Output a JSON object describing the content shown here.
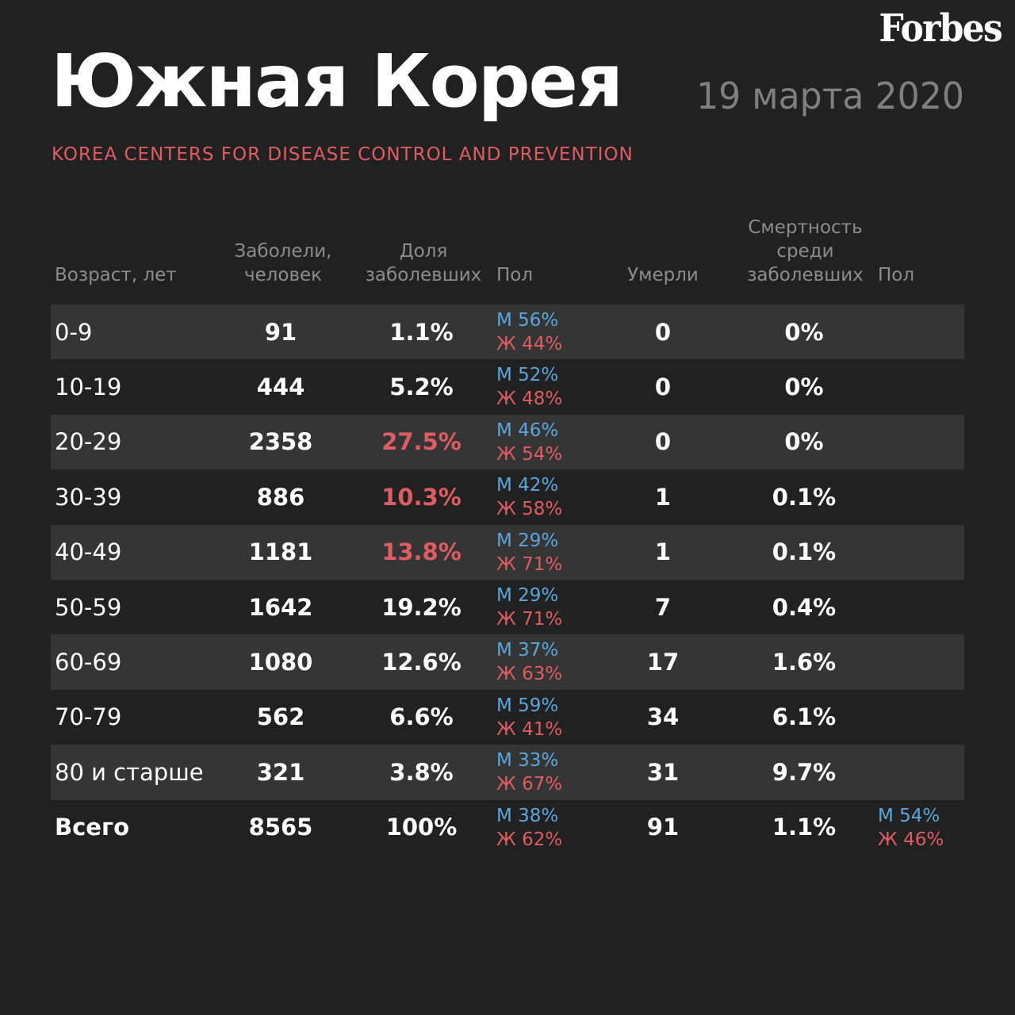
{
  "logo": "Forbes",
  "title": "Южная Корея",
  "date": "19 марта 2020",
  "source": "KOREA CENTERS FOR DISEASE CONTROL AND PREVENTION",
  "colors": {
    "background": "#212121",
    "row_shade": "#353535",
    "accent_red": "#e05c63",
    "accent_blue": "#5aa6dc",
    "muted": "#8c8c8c"
  },
  "headers": {
    "age": "Возраст, лет",
    "cases": "Заболели,\nчеловек",
    "share": "Доля\nзаболевших",
    "sex1": "Пол",
    "deaths": "Умерли",
    "mortality": "Смертность\nсреди\nзаболевших",
    "sex2": "Пол"
  },
  "chart_data": {
    "type": "table",
    "columns": [
      "Возраст, лет",
      "Заболели, человек",
      "Доля заболевших",
      "Пол",
      "Умерли",
      "Смертность среди заболевших",
      "Пол"
    ],
    "rows": [
      {
        "age": "0-9",
        "cases": "91",
        "share": "1.1%",
        "share_highlight": false,
        "m": "М 56%",
        "f": "Ж 44%",
        "deaths": "0",
        "mortality": "0%"
      },
      {
        "age": "10-19",
        "cases": "444",
        "share": "5.2%",
        "share_highlight": false,
        "m": "М 52%",
        "f": "Ж 48%",
        "deaths": "0",
        "mortality": "0%"
      },
      {
        "age": "20-29",
        "cases": "2358",
        "share": "27.5%",
        "share_highlight": true,
        "m": "М 46%",
        "f": "Ж 54%",
        "deaths": "0",
        "mortality": "0%"
      },
      {
        "age": "30-39",
        "cases": "886",
        "share": "10.3%",
        "share_highlight": true,
        "m": "М 42%",
        "f": "Ж 58%",
        "deaths": "1",
        "mortality": "0.1%"
      },
      {
        "age": "40-49",
        "cases": "1181",
        "share": "13.8%",
        "share_highlight": true,
        "m": "М 29%",
        "f": "Ж 71%",
        "deaths": "1",
        "mortality": "0.1%"
      },
      {
        "age": "50-59",
        "cases": "1642",
        "share": "19.2%",
        "share_highlight": false,
        "m": "М 29%",
        "f": "Ж 71%",
        "deaths": "7",
        "mortality": "0.4%"
      },
      {
        "age": "60-69",
        "cases": "1080",
        "share": "12.6%",
        "share_highlight": false,
        "m": "М 37%",
        "f": "Ж 63%",
        "deaths": "17",
        "mortality": "1.6%"
      },
      {
        "age": "70-79",
        "cases": "562",
        "share": "6.6%",
        "share_highlight": false,
        "m": "М 59%",
        "f": "Ж 41%",
        "deaths": "34",
        "mortality": "6.1%"
      },
      {
        "age": "80 и старше",
        "cases": "321",
        "share": "3.8%",
        "share_highlight": false,
        "m": "М 33%",
        "f": "Ж 67%",
        "deaths": "31",
        "mortality": "9.7%"
      }
    ],
    "total": {
      "age": "Всего",
      "cases": "8565",
      "share": "100%",
      "m": "М 38%",
      "f": "Ж 62%",
      "deaths": "91",
      "mortality": "1.1%",
      "m2": "М 54%",
      "f2": "Ж 46%"
    }
  }
}
